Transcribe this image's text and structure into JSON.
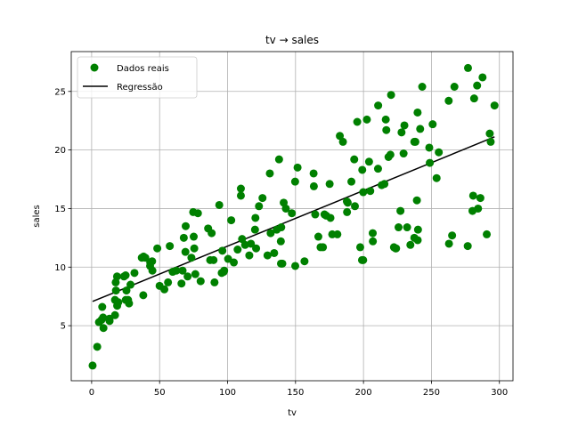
{
  "chart_data": {
    "type": "scatter",
    "title": "tv → sales",
    "xlabel": "tv",
    "ylabel": "sales",
    "xlim": [
      -15,
      310
    ],
    "ylim": [
      0.3,
      28.4
    ],
    "xticks": [
      0,
      50,
      100,
      150,
      200,
      250,
      300
    ],
    "yticks": [
      5,
      10,
      15,
      20,
      25
    ],
    "grid": true,
    "legend_position": "top-left",
    "colors": {
      "points": "#008000",
      "line": "#000000"
    },
    "series": [
      {
        "name": "Dados reais",
        "type": "scatter",
        "points": [
          [
            0.7,
            1.6
          ],
          [
            4.1,
            3.2
          ],
          [
            5.4,
            5.3
          ],
          [
            7.3,
            5.5
          ],
          [
            8.4,
            5.7
          ],
          [
            8.7,
            4.8
          ],
          [
            7.8,
            6.6
          ],
          [
            13.1,
            5.6
          ],
          [
            13.2,
            5.4
          ],
          [
            17.2,
            5.9
          ],
          [
            17.9,
            8.0
          ],
          [
            17.2,
            7.2
          ],
          [
            18.8,
            6.7
          ],
          [
            17.7,
            8.7
          ],
          [
            18.7,
            9.2
          ],
          [
            19.6,
            7.0
          ],
          [
            23.8,
            9.2
          ],
          [
            25.1,
            7.2
          ],
          [
            25.6,
            8.0
          ],
          [
            26.8,
            7.2
          ],
          [
            27.5,
            6.9
          ],
          [
            25.0,
            9.3
          ],
          [
            28.6,
            8.5
          ],
          [
            31.5,
            9.5
          ],
          [
            36.9,
            10.8
          ],
          [
            38.0,
            7.6
          ],
          [
            38.2,
            10.9
          ],
          [
            39.5,
            10.8
          ],
          [
            43.0,
            10.1
          ],
          [
            43.1,
            10.4
          ],
          [
            44.5,
            10.5
          ],
          [
            44.7,
            9.7
          ],
          [
            48.3,
            11.6
          ],
          [
            50.0,
            8.4
          ],
          [
            53.5,
            8.1
          ],
          [
            56.2,
            8.7
          ],
          [
            57.5,
            11.8
          ],
          [
            59.6,
            9.6
          ],
          [
            62.3,
            9.7
          ],
          [
            66.1,
            8.6
          ],
          [
            66.9,
            9.7
          ],
          [
            67.8,
            12.5
          ],
          [
            69.0,
            11.3
          ],
          [
            69.2,
            13.5
          ],
          [
            70.6,
            9.2
          ],
          [
            73.4,
            10.8
          ],
          [
            74.7,
            14.7
          ],
          [
            75.1,
            12.6
          ],
          [
            75.5,
            11.6
          ],
          [
            76.3,
            9.4
          ],
          [
            78.2,
            14.6
          ],
          [
            80.2,
            8.8
          ],
          [
            85.7,
            13.3
          ],
          [
            87.2,
            10.6
          ],
          [
            88.3,
            12.9
          ],
          [
            89.7,
            10.6
          ],
          [
            90.4,
            8.7
          ],
          [
            93.9,
            15.3
          ],
          [
            95.7,
            9.5
          ],
          [
            96.2,
            11.4
          ],
          [
            97.2,
            9.6
          ],
          [
            97.5,
            9.7
          ],
          [
            100.4,
            10.7
          ],
          [
            102.7,
            14.0
          ],
          [
            104.6,
            10.4
          ],
          [
            107.4,
            11.5
          ],
          [
            109.8,
            16.7
          ],
          [
            110.7,
            12.4
          ],
          [
            109.8,
            16.1
          ],
          [
            112.9,
            11.9
          ],
          [
            116.0,
            11.0
          ],
          [
            117.2,
            12.0
          ],
          [
            120.2,
            13.2
          ],
          [
            120.5,
            14.2
          ],
          [
            121.0,
            11.6
          ],
          [
            123.1,
            15.2
          ],
          [
            125.7,
            15.9
          ],
          [
            129.4,
            11.0
          ],
          [
            131.1,
            18.0
          ],
          [
            131.7,
            12.9
          ],
          [
            134.3,
            11.2
          ],
          [
            136.2,
            13.2
          ],
          [
            137.9,
            19.2
          ],
          [
            139.2,
            12.2
          ],
          [
            139.3,
            10.3
          ],
          [
            139.5,
            13.4
          ],
          [
            140.3,
            10.3
          ],
          [
            141.3,
            15.5
          ],
          [
            142.9,
            15.0
          ],
          [
            147.3,
            14.6
          ],
          [
            149.7,
            17.3
          ],
          [
            149.8,
            10.1
          ],
          [
            151.5,
            18.5
          ],
          [
            156.6,
            10.5
          ],
          [
            163.3,
            18.0
          ],
          [
            163.5,
            16.9
          ],
          [
            164.5,
            14.5
          ],
          [
            166.8,
            12.6
          ],
          [
            168.4,
            11.7
          ],
          [
            170.2,
            11.7
          ],
          [
            171.3,
            14.5
          ],
          [
            172.5,
            14.4
          ],
          [
            175.7,
            14.2
          ],
          [
            175.1,
            17.1
          ],
          [
            177.0,
            12.8
          ],
          [
            180.8,
            12.8
          ],
          [
            182.6,
            21.2
          ],
          [
            184.9,
            20.7
          ],
          [
            187.8,
            15.6
          ],
          [
            187.9,
            14.7
          ],
          [
            188.4,
            15.5
          ],
          [
            191.1,
            17.3
          ],
          [
            193.2,
            19.2
          ],
          [
            193.7,
            15.2
          ],
          [
            195.4,
            22.4
          ],
          [
            197.6,
            11.7
          ],
          [
            198.9,
            10.6
          ],
          [
            199.1,
            18.3
          ],
          [
            199.8,
            10.6
          ],
          [
            199.8,
            16.4
          ],
          [
            202.5,
            22.6
          ],
          [
            204.1,
            19.0
          ],
          [
            205.0,
            16.5
          ],
          [
            206.8,
            12.9
          ],
          [
            206.9,
            12.2
          ],
          [
            210.7,
            18.4
          ],
          [
            210.8,
            23.8
          ],
          [
            213.4,
            17.0
          ],
          [
            215.4,
            17.1
          ],
          [
            216.4,
            22.6
          ],
          [
            216.8,
            21.7
          ],
          [
            218.4,
            19.4
          ],
          [
            219.8,
            19.6
          ],
          [
            220.3,
            24.7
          ],
          [
            222.4,
            11.7
          ],
          [
            223.6,
            11.6
          ],
          [
            224.0,
            11.6
          ],
          [
            225.8,
            13.4
          ],
          [
            227.2,
            14.8
          ],
          [
            228.0,
            21.5
          ],
          [
            229.5,
            19.7
          ],
          [
            230.1,
            22.1
          ],
          [
            232.1,
            13.4
          ],
          [
            234.5,
            11.9
          ],
          [
            237.4,
            12.5
          ],
          [
            237.4,
            20.7
          ],
          [
            238.2,
            20.7
          ],
          [
            239.3,
            15.7
          ],
          [
            239.8,
            23.2
          ],
          [
            239.9,
            12.3
          ],
          [
            240.1,
            13.2
          ],
          [
            241.7,
            21.8
          ],
          [
            243.2,
            25.4
          ],
          [
            248.4,
            20.2
          ],
          [
            248.8,
            18.9
          ],
          [
            250.9,
            22.2
          ],
          [
            253.8,
            17.6
          ],
          [
            255.4,
            19.8
          ],
          [
            262.7,
            24.2
          ],
          [
            262.9,
            12.0
          ],
          [
            265.2,
            12.7
          ],
          [
            266.9,
            25.4
          ],
          [
            276.7,
            11.8
          ],
          [
            276.9,
            27.0
          ],
          [
            280.2,
            14.8
          ],
          [
            280.7,
            16.1
          ],
          [
            281.4,
            24.4
          ],
          [
            283.6,
            25.5
          ],
          [
            284.3,
            15.0
          ],
          [
            286.0,
            15.9
          ],
          [
            287.6,
            26.2
          ],
          [
            290.7,
            12.8
          ],
          [
            292.9,
            21.4
          ],
          [
            293.6,
            20.7
          ],
          [
            296.4,
            23.8
          ]
        ]
      },
      {
        "name": "Regressão",
        "type": "line",
        "points": [
          [
            0.7,
            7.07
          ],
          [
            296.4,
            21.12
          ]
        ]
      }
    ]
  }
}
